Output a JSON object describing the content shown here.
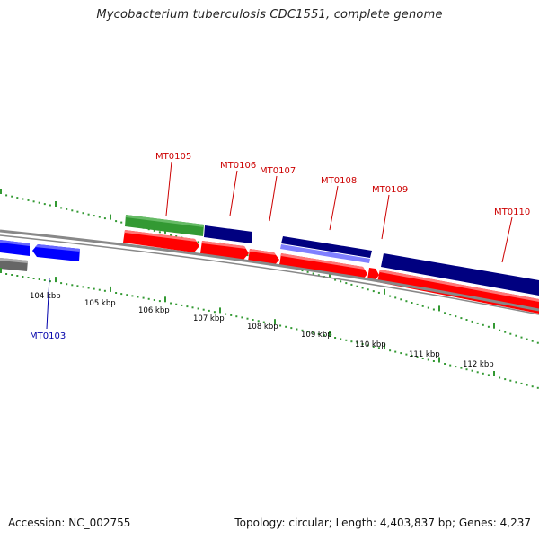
{
  "title": "Mycobacterium tuberculosis CDC1551, complete genome",
  "footer": {
    "accession": "Accession: NC_002755",
    "summary": "Topology: circular; Length: 4,403,837 bp; Genes: 4,237"
  },
  "colors": {
    "forward_label": "#cc0000",
    "reverse_label": "#0000aa",
    "tick_green": "#339933",
    "backbone": "#888888",
    "gene_red": "#ff0000",
    "gene_navy": "#000080",
    "gene_green": "#339933",
    "gene_blue": "#0000ff",
    "gene_gray": "#666666",
    "gene_lavender": "#8080ff"
  },
  "scale_labels": [
    "104 kbp",
    "105 kbp",
    "106 kbp",
    "107 kbp",
    "108 kbp",
    "109 kbp",
    "110 kbp",
    "111 kbp",
    "112 kbp"
  ],
  "gene_labels": [
    {
      "text": "MT0105",
      "strand": "forward"
    },
    {
      "text": "MT0106",
      "strand": "forward"
    },
    {
      "text": "MT0107",
      "strand": "forward"
    },
    {
      "text": "MT0108",
      "strand": "forward"
    },
    {
      "text": "MT0109",
      "strand": "forward"
    },
    {
      "text": "MT0110",
      "strand": "forward"
    },
    {
      "text": "MT0103",
      "strand": "reverse"
    }
  ]
}
